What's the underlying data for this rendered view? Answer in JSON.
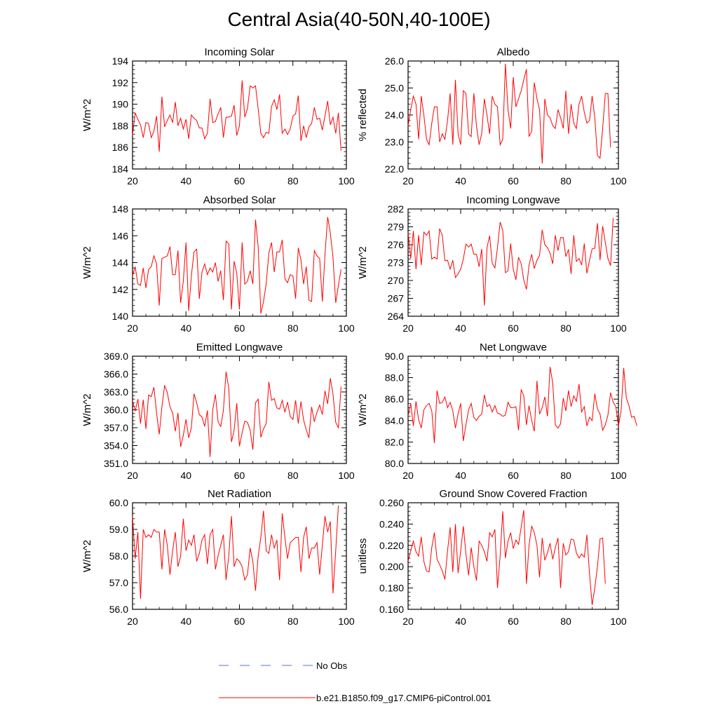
{
  "figure": {
    "title": "Central Asia(40-50N,40-100E)",
    "legend": [
      {
        "label": "No Obs",
        "color": "#5a6fd6",
        "style": "dashed"
      },
      {
        "label": "b.e21.B1850.f09_g17.CMIP6-piControl.001",
        "color": "#ff0000",
        "style": "solid"
      }
    ]
  },
  "chart_data": [
    {
      "type": "line",
      "title": "Incoming Solar",
      "ylabel": "W/m^2",
      "xlim": [
        20,
        100
      ],
      "xticks": [
        20,
        40,
        60,
        80,
        100
      ],
      "ylim": [
        184,
        194
      ],
      "yticks": [
        184,
        186,
        188,
        190,
        192,
        194
      ],
      "ytick_labels": [
        "184",
        "186",
        "188",
        "190",
        "192",
        "194"
      ],
      "x_start": 20,
      "series": [
        {
          "name": "b.e21.B1850.f09_g17.CMIP6-piControl.001",
          "color": "#ff0000",
          "values": [
            187.1,
            189.2,
            188.6,
            188.1,
            186.9,
            188.3,
            188.2,
            186.9,
            187.5,
            188.9,
            185.6,
            190.7,
            187.9,
            188.5,
            189.0,
            188.3,
            190.2,
            188.0,
            188.7,
            187.7,
            188.6,
            186.8,
            189.0,
            188.7,
            188.5,
            187.8,
            187.8,
            186.8,
            187.3,
            190.5,
            188.3,
            188.4,
            189.1,
            189.7,
            186.9,
            188.8,
            188.8,
            188.9,
            189.9,
            187.1,
            188.0,
            192.2,
            188.8,
            189.6,
            191.7,
            191.5,
            191.7,
            189.6,
            187.3,
            186.9,
            187.4,
            187.3,
            189.8,
            190.4,
            189.5,
            190.9,
            187.3,
            187.7,
            187.2,
            187.7,
            188.9,
            189.1,
            190.8,
            186.6,
            188.0,
            186.9,
            187.9,
            188.2,
            189.7,
            188.6,
            188.7,
            187.6,
            188.9,
            190.3,
            188.1,
            188.8,
            187.3,
            189.2,
            185.7
          ]
        }
      ]
    },
    {
      "type": "line",
      "title": "Albedo",
      "ylabel": "% reflected",
      "xlim": [
        20,
        100
      ],
      "xticks": [
        20,
        40,
        60,
        80,
        100
      ],
      "ylim": [
        22.0,
        26.0
      ],
      "yticks": [
        22,
        23,
        24,
        25,
        26
      ],
      "ytick_labels": [
        "22.0",
        "23.0",
        "24.0",
        "25.0",
        "26.0"
      ],
      "x_start": 20,
      "series": [
        {
          "name": "b.e21.B1850.f09_g17.CMIP6-piControl.001",
          "color": "#ff0000",
          "values": [
            23.6,
            24.2,
            24.7,
            24.4,
            23.1,
            24.7,
            24.0,
            23.1,
            22.9,
            23.7,
            24.3,
            24.3,
            23.0,
            23.3,
            23.1,
            23.8,
            24.8,
            22.9,
            25.3,
            23.3,
            22.9,
            24.9,
            24.8,
            23.3,
            23.2,
            24.8,
            23.6,
            22.9,
            23.3,
            24.6,
            24.0,
            23.3,
            24.7,
            24.4,
            24.3,
            22.9,
            23.1,
            25.9,
            24.2,
            23.5,
            25.4,
            24.3,
            24.6,
            24.9,
            25.3,
            25.7,
            23.2,
            23.4,
            25.2,
            24.6,
            24.2,
            22.2,
            24.6,
            24.0,
            23.9,
            23.6,
            23.5,
            24.2,
            23.9,
            23.5,
            24.9,
            23.3,
            24.4,
            23.7,
            23.5,
            24.4,
            24.7,
            24.1,
            23.7,
            23.8,
            24.7,
            23.9,
            22.5,
            22.4,
            23.5,
            24.8,
            24.8,
            22.8
          ]
        }
      ]
    },
    {
      "type": "line",
      "title": "Absorbed Solar",
      "ylabel": "W/m^2",
      "xlim": [
        20,
        100
      ],
      "xticks": [
        20,
        40,
        60,
        80,
        100
      ],
      "ylim": [
        140,
        148
      ],
      "yticks": [
        140,
        142,
        144,
        146,
        148
      ],
      "ytick_labels": [
        "140",
        "142",
        "144",
        "146",
        "148"
      ],
      "x_start": 20,
      "series": [
        {
          "name": "b.e21.B1850.f09_g17.CMIP6-piControl.001",
          "color": "#ff0000",
          "values": [
            143.0,
            143.7,
            142.4,
            142.3,
            143.6,
            142.1,
            143.5,
            143.7,
            144.5,
            143.9,
            140.8,
            144.3,
            144.4,
            144.5,
            145.2,
            143.1,
            143.1,
            144.9,
            141.0,
            142.6,
            145.5,
            140.4,
            143.0,
            144.8,
            145.0,
            141.3,
            143.3,
            143.9,
            143.1,
            143.6,
            143.3,
            144.0,
            142.6,
            143.4,
            141.2,
            145.6,
            145.4,
            140.5,
            144.1,
            143.2,
            140.5,
            145.5,
            142.4,
            142.6,
            143.4,
            142.4,
            147.2,
            145.2,
            140.2,
            141.1,
            142.4,
            144.7,
            145.5,
            143.3,
            144.8,
            144.8,
            145.7,
            142.8,
            142.5,
            143.1,
            143.0,
            141.3,
            145.1,
            144.2,
            142.4,
            143.7,
            141.2,
            141.1,
            144.9,
            144.5,
            144.3,
            141.1,
            144.6,
            147.4,
            146.2,
            144.4,
            141.0,
            142.3,
            143.5
          ]
        }
      ]
    },
    {
      "type": "line",
      "title": "Incoming Longwave",
      "ylabel": "W/m^2",
      "xlim": [
        20,
        100
      ],
      "xticks": [
        20,
        40,
        60,
        80,
        100
      ],
      "ylim": [
        264,
        282
      ],
      "yticks": [
        264,
        267,
        270,
        273,
        276,
        279,
        282
      ],
      "ytick_labels": [
        "264",
        "267",
        "270",
        "273",
        "276",
        "279",
        "282"
      ],
      "x_start": 20,
      "series": [
        {
          "name": "b.e21.B1850.f09_g17.CMIP6-piControl.001",
          "color": "#ff0000",
          "values": [
            278.0,
            273.7,
            278.3,
            271.9,
            277.6,
            272.6,
            278.1,
            277.6,
            278.3,
            273.6,
            273.9,
            273.6,
            278.7,
            277.6,
            273.3,
            273.4,
            271.9,
            273.4,
            270.5,
            271.1,
            271.9,
            273.6,
            276.1,
            275.6,
            276.1,
            274.4,
            274.4,
            272.3,
            275.3,
            265.8,
            275.5,
            277.5,
            272.9,
            272.1,
            275.5,
            279.8,
            278.4,
            271.3,
            271.6,
            276.2,
            271.9,
            270.1,
            273.9,
            272.8,
            270.1,
            268.5,
            272.6,
            274.4,
            272.0,
            273.4,
            274.2,
            278.5,
            276.0,
            275.5,
            274.6,
            272.8,
            277.6,
            275.0,
            277.2,
            277.2,
            274.0,
            275.2,
            271.1,
            277.6,
            273.2,
            273.7,
            272.6,
            276.2,
            271.2,
            273.4,
            275.3,
            275.4,
            279.6,
            273.4,
            279.1,
            276.4,
            273.7,
            272.5,
            280.5
          ]
        }
      ]
    },
    {
      "type": "line",
      "title": "Emitted Longwave",
      "ylabel": "W/m^2",
      "xlim": [
        20,
        100
      ],
      "xticks": [
        20,
        40,
        60,
        80,
        100
      ],
      "ylim": [
        351,
        369
      ],
      "yticks": [
        351,
        354,
        357,
        360,
        363,
        366,
        369
      ],
      "ytick_labels": [
        "351.0",
        "354.0",
        "357.0",
        "360.0",
        "363.0",
        "366.0",
        "369.0"
      ],
      "x_start": 20,
      "series": [
        {
          "name": "b.e21.B1850.f09_g17.CMIP6-piControl.001",
          "color": "#ff0000",
          "values": [
            361.5,
            359.8,
            361.8,
            357.7,
            361.7,
            356.8,
            362.5,
            362.2,
            363.8,
            359.5,
            355.9,
            360.5,
            364.1,
            362.9,
            360.5,
            359.5,
            356.4,
            359.5,
            353.8,
            355.7,
            358.4,
            355.3,
            357.0,
            362.7,
            361.2,
            359.2,
            358.8,
            357.2,
            359.9,
            352.1,
            360.0,
            362.6,
            358.0,
            357.2,
            359.9,
            366.4,
            363.6,
            354.6,
            356.6,
            361.1,
            353.9,
            356.1,
            358.1,
            357.9,
            356.6,
            353.3,
            361.2,
            361.8,
            355.4,
            356.8,
            357.7,
            364.7,
            361.6,
            361.9,
            360.3,
            360.1,
            361.6,
            359.6,
            361.3,
            358.9,
            358.4,
            361.6,
            357.7,
            361.4,
            358.3,
            356.6,
            355.3,
            360.5,
            358.0,
            359.6,
            360.8,
            359.2,
            363.2,
            361.0,
            365.3,
            362.7,
            357.9,
            357.0,
            363.9
          ]
        }
      ]
    },
    {
      "type": "line",
      "title": "Net Longwave",
      "ylabel": "W/m^2",
      "xlim": [
        20,
        100
      ],
      "xticks": [
        20,
        40,
        60,
        80,
        100
      ],
      "ylim": [
        80,
        90
      ],
      "yticks": [
        80,
        82,
        84,
        86,
        88,
        90
      ],
      "ytick_labels": [
        "80.0",
        "82.0",
        "84.0",
        "86.0",
        "88.0",
        "90.0"
      ],
      "x_start": 20,
      "series": [
        {
          "name": "b.e21.B1850.f09_g17.CMIP6-piControl.001",
          "color": "#ff0000",
          "values": [
            84.4,
            85.6,
            83.5,
            85.8,
            84.1,
            83.3,
            85.0,
            85.4,
            85.6,
            84.9,
            81.9,
            86.8,
            85.6,
            85.7,
            86.2,
            85.2,
            85.7,
            84.9,
            83.3,
            84.6,
            85.6,
            82.1,
            83.6,
            85.0,
            85.6,
            84.3,
            84.0,
            84.4,
            84.6,
            86.4,
            85.3,
            85.5,
            84.8,
            85.4,
            84.7,
            84.6,
            84.4,
            84.5,
            85.7,
            85.2,
            85.2,
            85.3,
            83.1,
            86.9,
            86.3,
            83.6,
            85.4,
            84.0,
            83.0,
            87.7,
            84.6,
            85.2,
            86.2,
            84.4,
            89.0,
            87.5,
            83.6,
            83.3,
            83.7,
            86.1,
            84.9,
            86.8,
            85.3,
            86.3,
            85.8,
            87.4,
            84.8,
            85.3,
            83.5,
            84.3,
            84.0,
            86.5,
            85.1,
            84.6,
            83.1,
            83.6,
            84.5,
            86.6,
            85.7,
            85.3,
            83.5,
            84.9,
            88.9,
            86.1,
            85.4,
            84.3,
            84.4,
            83.5
          ]
        }
      ]
    },
    {
      "type": "line",
      "title": "Net Radiation",
      "ylabel": "W/m^2",
      "xlim": [
        20,
        100
      ],
      "xticks": [
        20,
        40,
        60,
        80,
        100
      ],
      "ylim": [
        56,
        60
      ],
      "yticks": [
        56,
        57,
        58,
        59,
        60
      ],
      "ytick_labels": [
        "56.0",
        "57.0",
        "58.0",
        "59.0",
        "60.0"
      ],
      "x_start": 20,
      "series": [
        {
          "name": "b.e21.B1850.f09_g17.CMIP6-piControl.001",
          "color": "#ff0000",
          "values": [
            59.5,
            57.9,
            58.9,
            56.4,
            59.0,
            58.7,
            58.8,
            58.7,
            59.0,
            58.9,
            58.9,
            57.5,
            59.0,
            58.4,
            57.3,
            58.2,
            58.9,
            57.6,
            58.0,
            59.4,
            58.2,
            58.6,
            58.4,
            58.8,
            57.8,
            58.1,
            58.6,
            58.8,
            57.7,
            58.8,
            59.0,
            57.5,
            58.0,
            58.4,
            58.8,
            57.1,
            58.0,
            59.5,
            57.6,
            57.9,
            57.8,
            57.6,
            57.1,
            57.3,
            58.3,
            57.8,
            56.7,
            58.0,
            58.7,
            59.7,
            58.2,
            58.1,
            58.8,
            58.3,
            58.6,
            57.1,
            59.6,
            58.7,
            57.9,
            58.5,
            58.6,
            58.7,
            58.7,
            57.4,
            58.7,
            59.1,
            57.9,
            58.3,
            58.3,
            58.5,
            57.3,
            58.4,
            59.5,
            58.9,
            59.3,
            56.6,
            58.2,
            59.9
          ]
        }
      ]
    },
    {
      "type": "line",
      "title": "Ground Snow Covered Fraction",
      "ylabel": "unitless",
      "xlim": [
        20,
        100
      ],
      "xticks": [
        20,
        40,
        60,
        80,
        100
      ],
      "ylim": [
        0.16,
        0.26
      ],
      "yticks": [
        0.16,
        0.18,
        0.2,
        0.22,
        0.24,
        0.26
      ],
      "ytick_labels": [
        "0.160",
        "0.180",
        "0.200",
        "0.220",
        "0.240",
        "0.260"
      ],
      "x_start": 20,
      "series": [
        {
          "name": "b.e21.B1850.f09_g17.CMIP6-piControl.001",
          "color": "#ff0000",
          "values": [
            0.205,
            0.215,
            0.224,
            0.214,
            0.21,
            0.228,
            0.205,
            0.196,
            0.195,
            0.218,
            0.232,
            0.207,
            0.202,
            0.196,
            0.188,
            0.215,
            0.237,
            0.195,
            0.24,
            0.194,
            0.215,
            0.238,
            0.212,
            0.192,
            0.218,
            0.2,
            0.187,
            0.224,
            0.22,
            0.214,
            0.205,
            0.232,
            0.228,
            0.235,
            0.18,
            0.21,
            0.252,
            0.208,
            0.224,
            0.232,
            0.217,
            0.225,
            0.221,
            0.237,
            0.253,
            0.184,
            0.22,
            0.238,
            0.232,
            0.22,
            0.19,
            0.227,
            0.206,
            0.213,
            0.222,
            0.207,
            0.218,
            0.227,
            0.18,
            0.222,
            0.211,
            0.214,
            0.226,
            0.225,
            0.213,
            0.208,
            0.212,
            0.209,
            0.23,
            0.193,
            0.164,
            0.18,
            0.2,
            0.226,
            0.227,
            0.184
          ]
        }
      ]
    }
  ]
}
